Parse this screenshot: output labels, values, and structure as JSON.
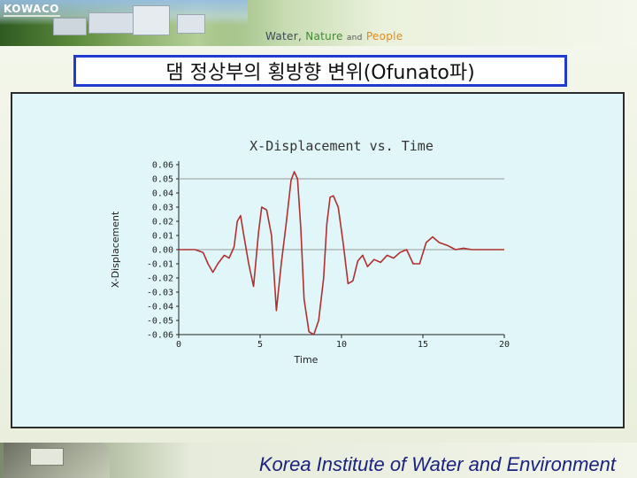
{
  "header": {
    "logo": "KOWACO",
    "tagline": {
      "word1": "Water,",
      "word2": "Nature",
      "word3": "and",
      "word4": "People"
    }
  },
  "slide": {
    "title": "댐 정상부의 횡방향 변위(Ofunato파)"
  },
  "footer": {
    "institute": "Korea Institute of Water and Environment"
  },
  "chart_data": {
    "type": "line",
    "title": "X-Displacement vs. Time",
    "xlabel": "Time",
    "ylabel": "X-Displacement",
    "xlim": [
      0,
      20
    ],
    "ylim": [
      -0.06,
      0.06
    ],
    "x_ticks": [
      "0",
      "5",
      "10",
      "15",
      "20"
    ],
    "y_ticks": [
      "0.06",
      "0.05",
      "0.04",
      "0.03",
      "0.02",
      "0.01",
      "0.00",
      "-0.01",
      "-0.02",
      "-0.03",
      "-0.04",
      "-0.05",
      "-0.06"
    ],
    "grid": false,
    "legend": "none",
    "series": [
      {
        "color": "#b03030",
        "x": [
          0.0,
          1.0,
          1.5,
          1.8,
          2.1,
          2.4,
          2.8,
          3.1,
          3.4,
          3.6,
          3.8,
          4.0,
          4.3,
          4.6,
          4.9,
          5.1,
          5.4,
          5.7,
          6.0,
          6.3,
          6.6,
          6.9,
          7.1,
          7.3,
          7.5,
          7.7,
          8.0,
          8.3,
          8.6,
          8.9,
          9.1,
          9.3,
          9.5,
          9.8,
          10.1,
          10.4,
          10.7,
          11.0,
          11.3,
          11.6,
          12.0,
          12.4,
          12.8,
          13.2,
          13.6,
          14.0,
          14.4,
          14.8,
          15.2,
          15.6,
          16.0,
          16.5,
          17.0,
          17.5,
          18.0,
          19.0,
          20.0
        ],
        "y": [
          0.0,
          0.0,
          -0.002,
          -0.01,
          -0.016,
          -0.01,
          -0.004,
          -0.006,
          0.002,
          0.02,
          0.024,
          0.01,
          -0.01,
          -0.026,
          0.012,
          0.03,
          0.028,
          0.01,
          -0.043,
          -0.01,
          0.018,
          0.049,
          0.055,
          0.05,
          0.015,
          -0.035,
          -0.058,
          -0.06,
          -0.05,
          -0.02,
          0.018,
          0.037,
          0.038,
          0.03,
          0.005,
          -0.024,
          -0.022,
          -0.008,
          -0.004,
          -0.012,
          -0.007,
          -0.009,
          -0.004,
          -0.006,
          -0.002,
          0.0,
          -0.01,
          -0.01,
          0.005,
          0.009,
          0.005,
          0.003,
          0.0,
          0.001,
          0.0,
          0.0,
          0.0
        ]
      }
    ]
  }
}
